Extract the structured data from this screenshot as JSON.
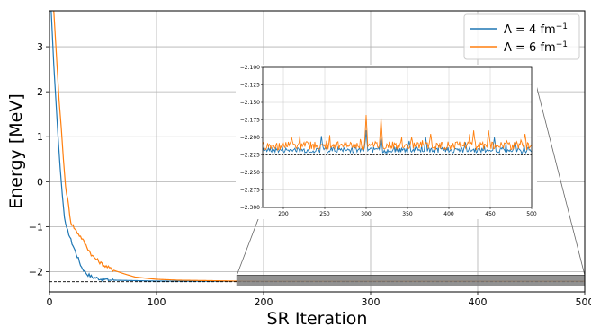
{
  "chart_data": {
    "type": "line",
    "xlabel": "SR Iteration",
    "ylabel": "Energy [MeV]",
    "xlim": [
      0,
      500
    ],
    "ylim": [
      -2.45,
      3.8
    ],
    "xticks": [
      "0",
      "100",
      "200",
      "300",
      "400",
      "500"
    ],
    "yticks": [
      "−2",
      "−1",
      "0",
      "1",
      "2",
      "3"
    ],
    "grid": true,
    "legend_position": "top-right",
    "reference_line": -2.225,
    "colors": {
      "series_a": "#1f77b4",
      "series_b": "#ff7f0e",
      "reference": "#000000",
      "zoom_band": "#7f7f7f"
    },
    "series": [
      {
        "name": "Λ = 4 fm⁻¹",
        "label_main": "Λ = 4 fm",
        "label_sup": "−1",
        "x": [
          0,
          2,
          4,
          6,
          8,
          10,
          12,
          14,
          16,
          18,
          20,
          25,
          30,
          35,
          40,
          50,
          60,
          80,
          100,
          150,
          200,
          300,
          400,
          500
        ],
        "y": [
          4.5,
          3.6,
          2.6,
          1.8,
          1.0,
          0.3,
          -0.3,
          -0.8,
          -1.05,
          -1.15,
          -1.3,
          -1.6,
          -1.9,
          -2.05,
          -2.12,
          -2.17,
          -2.19,
          -2.2,
          -2.21,
          -2.215,
          -2.215,
          -2.215,
          -2.215,
          -2.215
        ]
      },
      {
        "name": "Λ = 6 fm⁻¹",
        "label_main": "Λ = 6 fm",
        "label_sup": "−1",
        "x": [
          0,
          3,
          5,
          7,
          9,
          11,
          13,
          15,
          17,
          20,
          25,
          30,
          35,
          40,
          50,
          60,
          70,
          80,
          100,
          120,
          150,
          175,
          200,
          300,
          400,
          500
        ],
        "y": [
          5.0,
          4.2,
          3.4,
          2.6,
          1.8,
          1.2,
          0.5,
          -0.1,
          -0.4,
          -0.9,
          -1.1,
          -1.25,
          -1.45,
          -1.65,
          -1.85,
          -1.97,
          -2.05,
          -2.12,
          -2.17,
          -2.19,
          -2.2,
          -2.21,
          -2.215,
          -2.215,
          -2.215,
          -2.215
        ]
      }
    ],
    "inset": {
      "xlim": [
        175,
        500
      ],
      "ylim": [
        -2.3,
        -2.1
      ],
      "xticks": [
        "200",
        "250",
        "300",
        "350",
        "400",
        "450",
        "500"
      ],
      "yticks": [
        "−2.100",
        "−2.125",
        "−2.150",
        "−2.175",
        "−2.200",
        "−2.225",
        "−2.250",
        "−2.275",
        "−2.300"
      ],
      "baseline_a": -2.218,
      "baseline_b": -2.212,
      "spikes_a": [
        [
          246,
          -2.198
        ],
        [
          300,
          -2.19
        ],
        [
          318,
          -2.2
        ],
        [
          352,
          -2.205
        ],
        [
          372,
          -2.2
        ],
        [
          420,
          -2.207
        ],
        [
          455,
          -2.2
        ],
        [
          480,
          -2.206
        ]
      ],
      "spikes_b": [
        [
          210,
          -2.2
        ],
        [
          246,
          -2.21
        ],
        [
          300,
          -2.168
        ],
        [
          318,
          -2.172
        ],
        [
          355,
          -2.2
        ],
        [
          378,
          -2.195
        ],
        [
          430,
          -2.19
        ],
        [
          448,
          -2.19
        ],
        [
          470,
          -2.205
        ],
        [
          492,
          -2.195
        ]
      ]
    }
  }
}
